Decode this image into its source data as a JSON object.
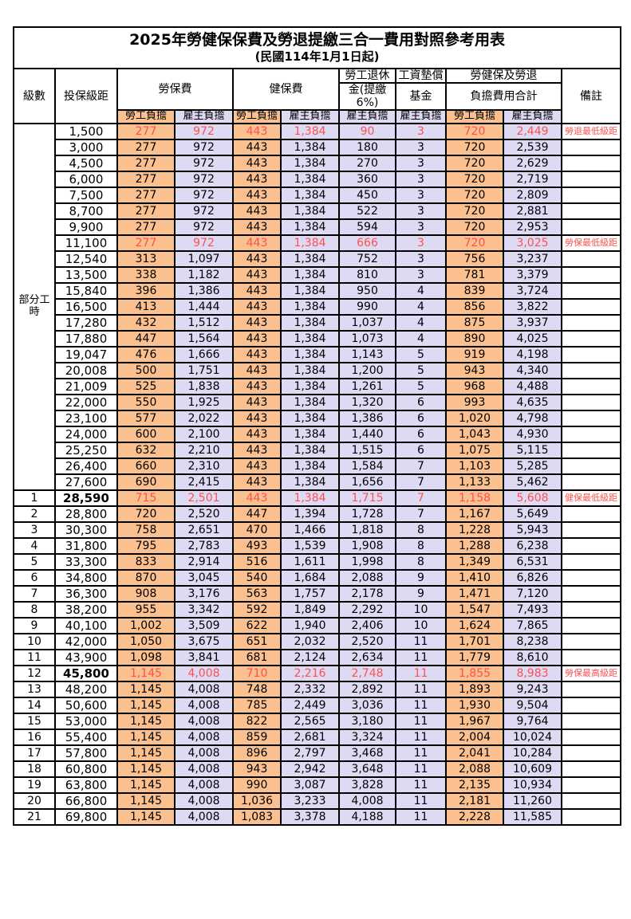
{
  "colors": {
    "employee_column_bg": "#FAC08F",
    "employer_column_bg": "#DEDAF3",
    "highlight_text": "#FF5050",
    "border": "#000000"
  },
  "table": {
    "title": "2025年勞健保保費及勞退提繳三合一費用對照參考用表",
    "subtitle": "(民國114年1月1日起)",
    "header": {
      "level": "級數",
      "bracket": "投保級距",
      "labor_insurance": "勞保費",
      "health_insurance": "健保費",
      "pension_line1": "勞工退休",
      "pension_line2": "金(提繳6%)",
      "wage_fund_line1": "工資墊償",
      "wage_fund_line2": "基金",
      "total_line1": "勞健保及勞退",
      "total_line2": "負擔費用合計",
      "remark": "備註",
      "employee": "勞工負擔",
      "employer": "雇主負擔"
    },
    "part_time": {
      "label": "部分工時",
      "rowspan": 23
    },
    "rows": [
      {
        "bracket": "1,500",
        "cells": [
          "277",
          "972",
          "443",
          "1,384",
          "90",
          "3",
          "720",
          "2,449"
        ],
        "remark": "勞退最低級距",
        "hl": true
      },
      {
        "bracket": "3,000",
        "cells": [
          "277",
          "972",
          "443",
          "1,384",
          "180",
          "3",
          "720",
          "2,539"
        ],
        "remark": ""
      },
      {
        "bracket": "4,500",
        "cells": [
          "277",
          "972",
          "443",
          "1,384",
          "270",
          "3",
          "720",
          "2,629"
        ],
        "remark": ""
      },
      {
        "bracket": "6,000",
        "cells": [
          "277",
          "972",
          "443",
          "1,384",
          "360",
          "3",
          "720",
          "2,719"
        ],
        "remark": ""
      },
      {
        "bracket": "7,500",
        "cells": [
          "277",
          "972",
          "443",
          "1,384",
          "450",
          "3",
          "720",
          "2,809"
        ],
        "remark": ""
      },
      {
        "bracket": "8,700",
        "cells": [
          "277",
          "972",
          "443",
          "1,384",
          "522",
          "3",
          "720",
          "2,881"
        ],
        "remark": ""
      },
      {
        "bracket": "9,900",
        "cells": [
          "277",
          "972",
          "443",
          "1,384",
          "594",
          "3",
          "720",
          "2,953"
        ],
        "remark": ""
      },
      {
        "bracket": "11,100",
        "cells": [
          "277",
          "972",
          "443",
          "1,384",
          "666",
          "3",
          "720",
          "3,025"
        ],
        "remark": "勞保最低級距",
        "hl": true
      },
      {
        "bracket": "12,540",
        "cells": [
          "313",
          "1,097",
          "443",
          "1,384",
          "752",
          "3",
          "756",
          "3,237"
        ],
        "remark": ""
      },
      {
        "bracket": "13,500",
        "cells": [
          "338",
          "1,182",
          "443",
          "1,384",
          "810",
          "3",
          "781",
          "3,379"
        ],
        "remark": ""
      },
      {
        "bracket": "15,840",
        "cells": [
          "396",
          "1,386",
          "443",
          "1,384",
          "950",
          "4",
          "839",
          "3,724"
        ],
        "remark": ""
      },
      {
        "bracket": "16,500",
        "cells": [
          "413",
          "1,444",
          "443",
          "1,384",
          "990",
          "4",
          "856",
          "3,822"
        ],
        "remark": ""
      },
      {
        "bracket": "17,280",
        "cells": [
          "432",
          "1,512",
          "443",
          "1,384",
          "1,037",
          "4",
          "875",
          "3,937"
        ],
        "remark": ""
      },
      {
        "bracket": "17,880",
        "cells": [
          "447",
          "1,564",
          "443",
          "1,384",
          "1,073",
          "4",
          "890",
          "4,025"
        ],
        "remark": ""
      },
      {
        "bracket": "19,047",
        "cells": [
          "476",
          "1,666",
          "443",
          "1,384",
          "1,143",
          "5",
          "919",
          "4,198"
        ],
        "remark": ""
      },
      {
        "bracket": "20,008",
        "cells": [
          "500",
          "1,751",
          "443",
          "1,384",
          "1,200",
          "5",
          "943",
          "4,340"
        ],
        "remark": ""
      },
      {
        "bracket": "21,009",
        "cells": [
          "525",
          "1,838",
          "443",
          "1,384",
          "1,261",
          "5",
          "968",
          "4,488"
        ],
        "remark": ""
      },
      {
        "bracket": "22,000",
        "cells": [
          "550",
          "1,925",
          "443",
          "1,384",
          "1,320",
          "6",
          "993",
          "4,635"
        ],
        "remark": ""
      },
      {
        "bracket": "23,100",
        "cells": [
          "577",
          "2,022",
          "443",
          "1,384",
          "1,386",
          "6",
          "1,020",
          "4,798"
        ],
        "remark": ""
      },
      {
        "bracket": "24,000",
        "cells": [
          "600",
          "2,100",
          "443",
          "1,384",
          "1,440",
          "6",
          "1,043",
          "4,930"
        ],
        "remark": ""
      },
      {
        "bracket": "25,250",
        "cells": [
          "632",
          "2,210",
          "443",
          "1,384",
          "1,515",
          "6",
          "1,075",
          "5,115"
        ],
        "remark": ""
      },
      {
        "bracket": "26,400",
        "cells": [
          "660",
          "2,310",
          "443",
          "1,384",
          "1,584",
          "7",
          "1,103",
          "5,285"
        ],
        "remark": ""
      },
      {
        "bracket": "27,600",
        "cells": [
          "690",
          "2,415",
          "443",
          "1,384",
          "1,656",
          "7",
          "1,133",
          "5,462"
        ],
        "remark": ""
      },
      {
        "level": "1",
        "bracket": "28,590",
        "cells": [
          "715",
          "2,501",
          "443",
          "1,384",
          "1,715",
          "7",
          "1,158",
          "5,608"
        ],
        "remark": "健保最低級距",
        "hl": true,
        "bb": true
      },
      {
        "level": "2",
        "bracket": "28,800",
        "cells": [
          "720",
          "2,520",
          "447",
          "1,394",
          "1,728",
          "7",
          "1,167",
          "5,649"
        ],
        "remark": ""
      },
      {
        "level": "3",
        "bracket": "30,300",
        "cells": [
          "758",
          "2,651",
          "470",
          "1,466",
          "1,818",
          "8",
          "1,228",
          "5,943"
        ],
        "remark": ""
      },
      {
        "level": "4",
        "bracket": "31,800",
        "cells": [
          "795",
          "2,783",
          "493",
          "1,539",
          "1,908",
          "8",
          "1,288",
          "6,238"
        ],
        "remark": ""
      },
      {
        "level": "5",
        "bracket": "33,300",
        "cells": [
          "833",
          "2,914",
          "516",
          "1,611",
          "1,998",
          "8",
          "1,349",
          "6,531"
        ],
        "remark": ""
      },
      {
        "level": "6",
        "bracket": "34,800",
        "cells": [
          "870",
          "3,045",
          "540",
          "1,684",
          "2,088",
          "9",
          "1,410",
          "6,826"
        ],
        "remark": ""
      },
      {
        "level": "7",
        "bracket": "36,300",
        "cells": [
          "908",
          "3,176",
          "563",
          "1,757",
          "2,178",
          "9",
          "1,471",
          "7,120"
        ],
        "remark": ""
      },
      {
        "level": "8",
        "bracket": "38,200",
        "cells": [
          "955",
          "3,342",
          "592",
          "1,849",
          "2,292",
          "10",
          "1,547",
          "7,493"
        ],
        "remark": ""
      },
      {
        "level": "9",
        "bracket": "40,100",
        "cells": [
          "1,002",
          "3,509",
          "622",
          "1,940",
          "2,406",
          "10",
          "1,624",
          "7,865"
        ],
        "remark": ""
      },
      {
        "level": "10",
        "bracket": "42,000",
        "cells": [
          "1,050",
          "3,675",
          "651",
          "2,032",
          "2,520",
          "11",
          "1,701",
          "8,238"
        ],
        "remark": ""
      },
      {
        "level": "11",
        "bracket": "43,900",
        "cells": [
          "1,098",
          "3,841",
          "681",
          "2,124",
          "2,634",
          "11",
          "1,779",
          "8,610"
        ],
        "remark": ""
      },
      {
        "level": "12",
        "bracket": "45,800",
        "cells": [
          "1,145",
          "4,008",
          "710",
          "2,216",
          "2,748",
          "11",
          "1,855",
          "8,983"
        ],
        "remark": "勞保最高級距",
        "hl": true,
        "bb": true
      },
      {
        "level": "13",
        "bracket": "48,200",
        "cells": [
          "1,145",
          "4,008",
          "748",
          "2,332",
          "2,892",
          "11",
          "1,893",
          "9,243"
        ],
        "remark": ""
      },
      {
        "level": "14",
        "bracket": "50,600",
        "cells": [
          "1,145",
          "4,008",
          "785",
          "2,449",
          "3,036",
          "11",
          "1,930",
          "9,504"
        ],
        "remark": ""
      },
      {
        "level": "15",
        "bracket": "53,000",
        "cells": [
          "1,145",
          "4,008",
          "822",
          "2,565",
          "3,180",
          "11",
          "1,967",
          "9,764"
        ],
        "remark": ""
      },
      {
        "level": "16",
        "bracket": "55,400",
        "cells": [
          "1,145",
          "4,008",
          "859",
          "2,681",
          "3,324",
          "11",
          "2,004",
          "10,024"
        ],
        "remark": ""
      },
      {
        "level": "17",
        "bracket": "57,800",
        "cells": [
          "1,145",
          "4,008",
          "896",
          "2,797",
          "3,468",
          "11",
          "2,041",
          "10,284"
        ],
        "remark": ""
      },
      {
        "level": "18",
        "bracket": "60,800",
        "cells": [
          "1,145",
          "4,008",
          "943",
          "2,942",
          "3,648",
          "11",
          "2,088",
          "10,609"
        ],
        "remark": ""
      },
      {
        "level": "19",
        "bracket": "63,800",
        "cells": [
          "1,145",
          "4,008",
          "990",
          "3,087",
          "3,828",
          "11",
          "2,135",
          "10,934"
        ],
        "remark": ""
      },
      {
        "level": "20",
        "bracket": "66,800",
        "cells": [
          "1,145",
          "4,008",
          "1,036",
          "3,233",
          "4,008",
          "11",
          "2,181",
          "11,260"
        ],
        "remark": ""
      },
      {
        "level": "21",
        "bracket": "69,800",
        "cells": [
          "1,145",
          "4,008",
          "1,083",
          "3,378",
          "4,188",
          "11",
          "2,228",
          "11,585"
        ],
        "remark": ""
      }
    ]
  }
}
